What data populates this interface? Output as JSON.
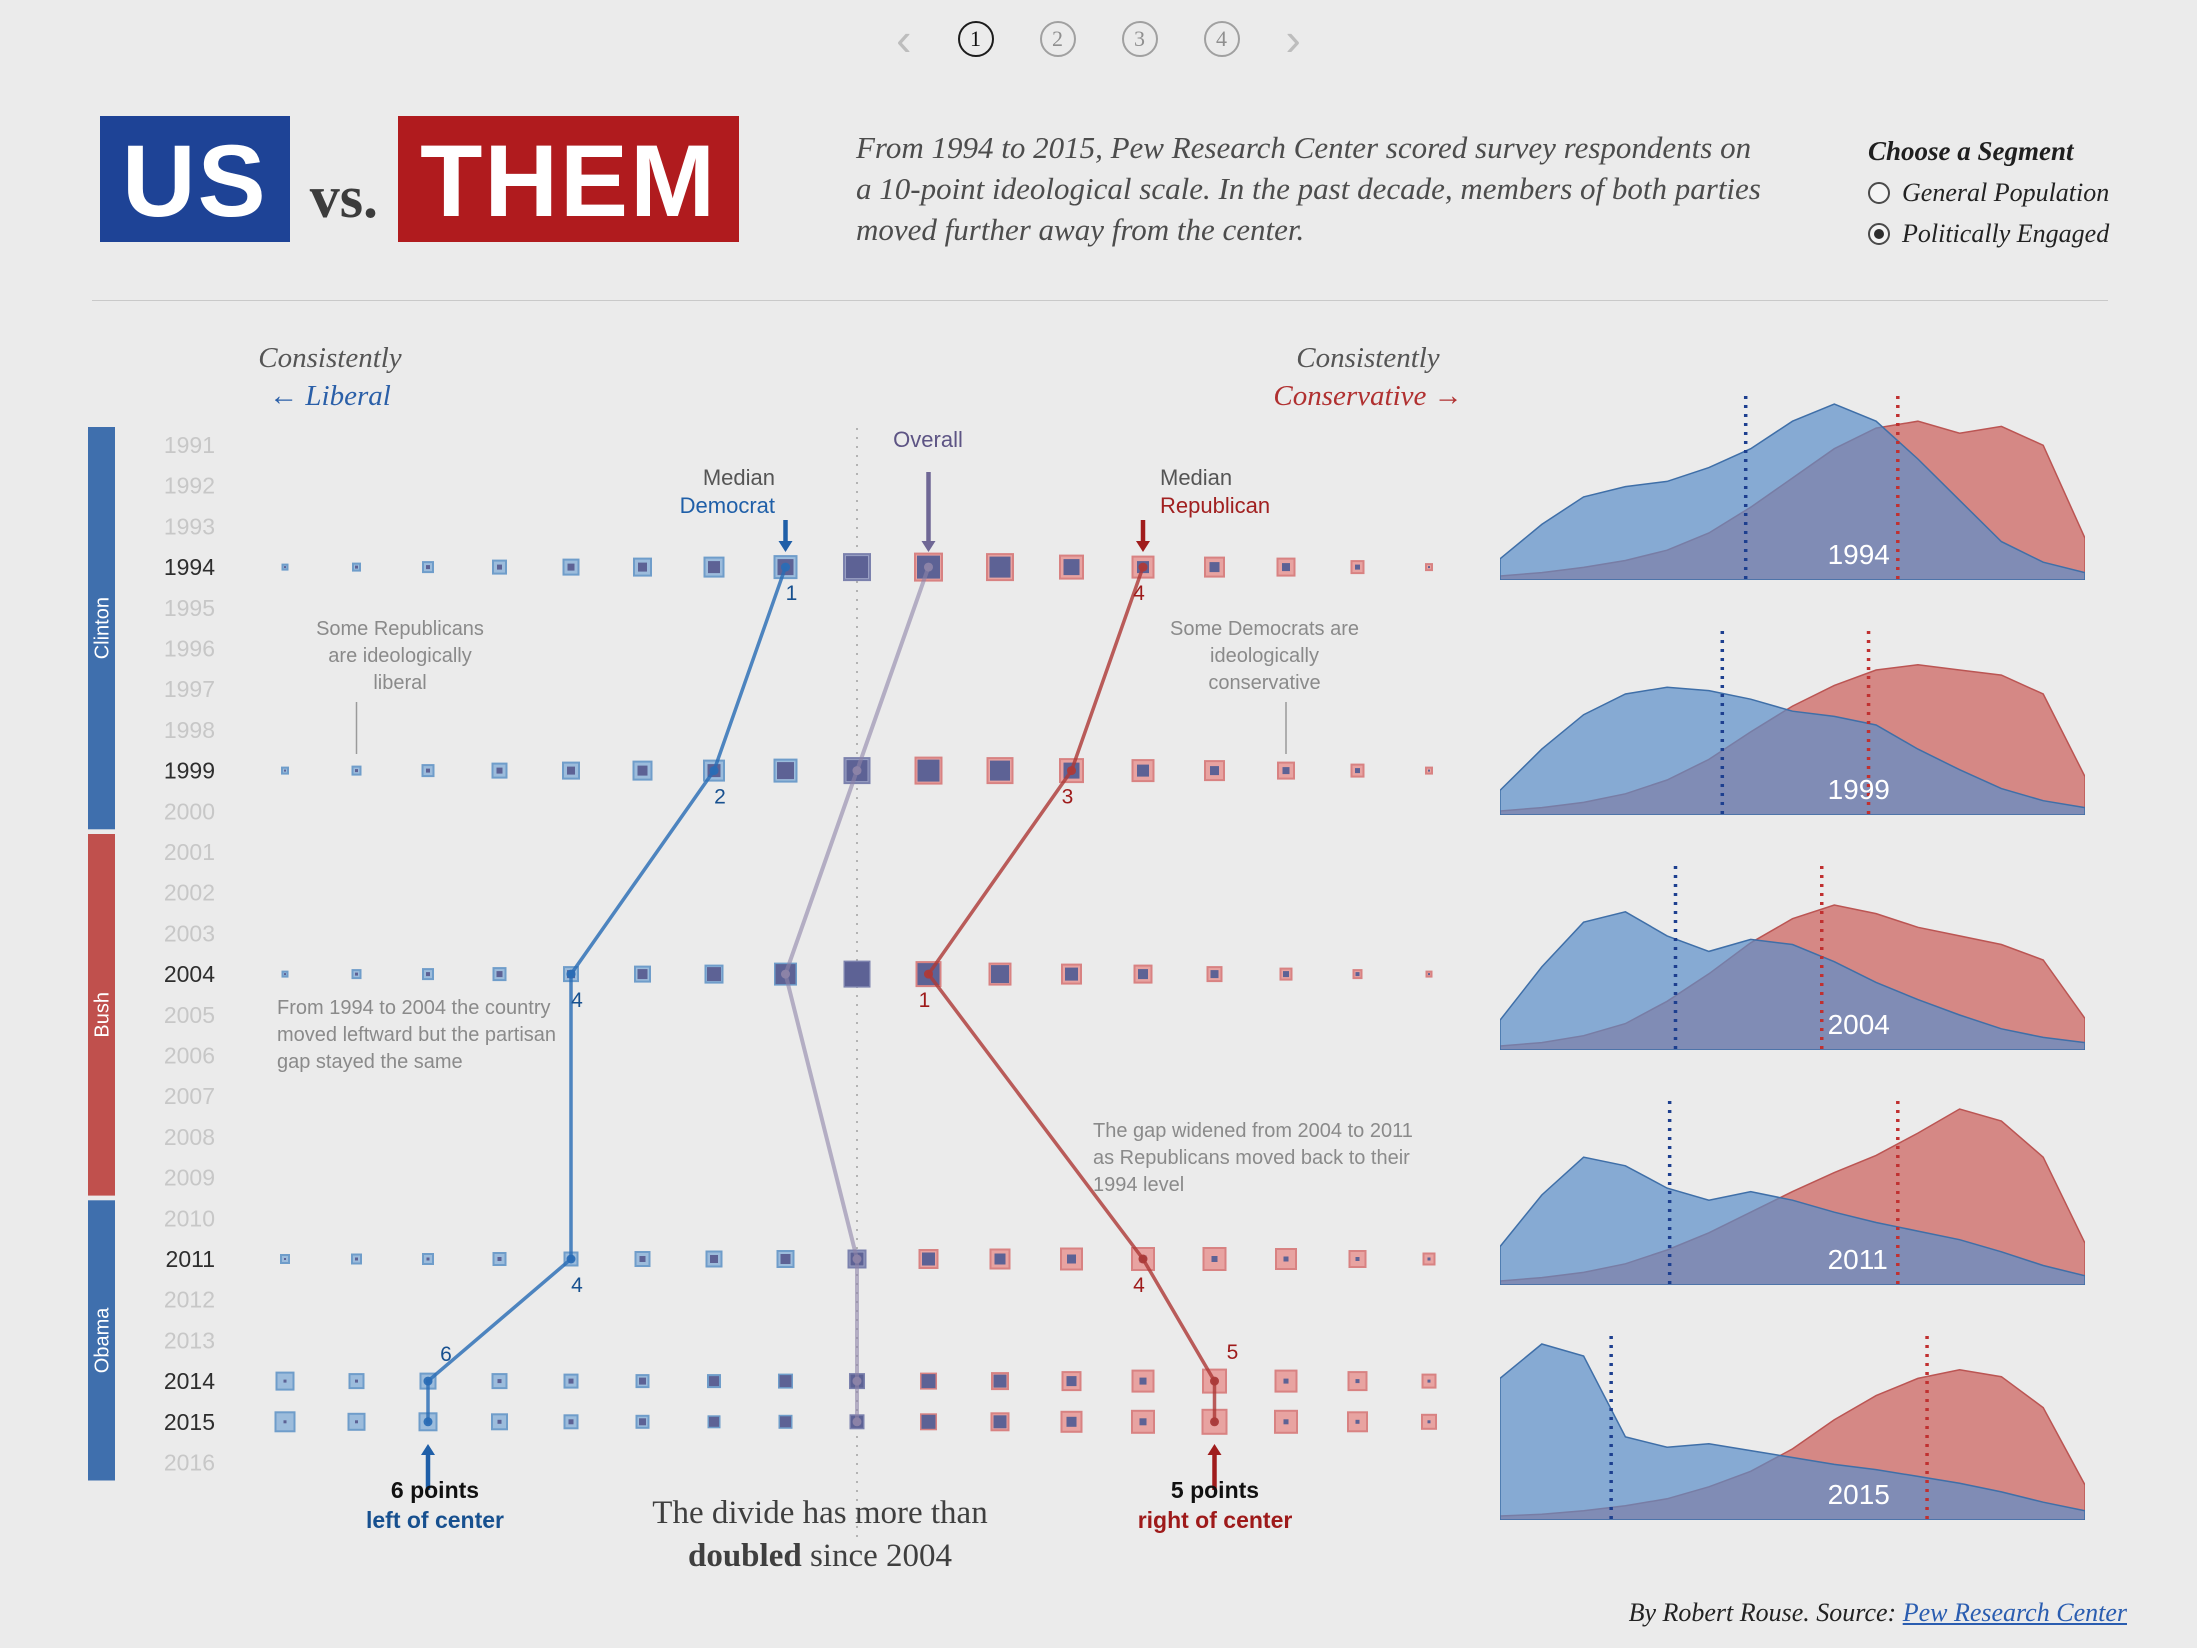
{
  "pager": {
    "prev": "‹",
    "next": "›",
    "pages": [
      "1",
      "2",
      "3",
      "4"
    ],
    "active": "1"
  },
  "header": {
    "logo": {
      "us": "US",
      "vs": "vs.",
      "them": "THEM"
    },
    "intro": "From 1994 to 2015, Pew Research Center scored survey respondents on a 10-point ideological scale. In the past decade, members of both parties moved further away from the center.",
    "segment": {
      "title": "Choose a Segment",
      "options": [
        {
          "label": "General Population",
          "selected": false
        },
        {
          "label": "Politically Engaged",
          "selected": true
        }
      ]
    }
  },
  "main_chart": {
    "labels": {
      "left_line1": "Consistently",
      "left_line2": "← Liberal",
      "right_line1": "Consistently",
      "right_line2": "Conservative →",
      "median_dem_1": "Median",
      "median_dem_2": "Democrat",
      "overall": "Overall",
      "median_rep_1": "Median",
      "median_rep_2": "Republican"
    },
    "annotations": {
      "some_republicans": "Some Republicans are ideologically liberal",
      "some_democrats": "Some Democrats are ideologically conservative",
      "leftward": "From 1994 to 2004 the country moved leftward but the partisan gap stayed the same",
      "gap_widened": "The gap widened from 2004 to 2011 as Republicans moved back to their 1994 level"
    },
    "callouts": {
      "dem_points": "6 points",
      "dem_rest": "left of center",
      "rep_points": "5 points",
      "rep_rest": "right of center"
    },
    "divide": {
      "line1": "The divide has more than",
      "bold": "doubled",
      "rest": " since 2004"
    }
  },
  "colors": {
    "dem_fill": "#9cbcdc",
    "dem_stroke": "#6f9dca",
    "rep_fill": "#e8a3a1",
    "rep_stroke": "#d88282",
    "overlap": "#5d6295",
    "center_fill": "#9aa0c4",
    "center_stroke": "#7b81ad",
    "dem_line": "#2a6db5",
    "rep_line": "#ad3a38",
    "overall_line": "#8d84a8",
    "dem_dark": "#17508f",
    "rep_dark": "#9e1a1a",
    "overall_dark": "#6f6795",
    "dem_arrow": "#1f5fa8",
    "rep_arrow": "#a01c1c",
    "panel_blue": "#5b8ec9",
    "panel_blue_stroke": "#3f6fa8",
    "panel_red": "#cf6f6c",
    "panel_red_stroke": "#bb5553",
    "panel_blue_median": "#1d3f8f",
    "panel_red_median": "#c03030",
    "president_blue": "#3f6fad",
    "president_red": "#c0504d"
  },
  "chart_data": [
    {
      "type": "scatter",
      "title": "Ideological distribution of Democrats and Republicans by year (square size = share of respondents, purple = overlap)",
      "year_axis_start": 1991,
      "year_axis_end": 2016,
      "positions": 17,
      "center_index": 8,
      "years": [
        1994,
        1999,
        2004,
        2011,
        2014,
        2015
      ],
      "presidents": [
        {
          "name": "Clinton",
          "start": 1991,
          "end": 2000,
          "party": "blue"
        },
        {
          "name": "Bush",
          "start": 2001,
          "end": 2009,
          "party": "red"
        },
        {
          "name": "Obama",
          "start": 2010,
          "end": 2016,
          "party": "blue"
        }
      ],
      "rows": [
        {
          "year": 1994,
          "outer": [
            5,
            7,
            10,
            13,
            15,
            17,
            19,
            22,
            26,
            27,
            26,
            23,
            21,
            19,
            17,
            12,
            6
          ],
          "inner": [
            2,
            3,
            4,
            5,
            7,
            9,
            12,
            16,
            22,
            23,
            21,
            16,
            12,
            10,
            8,
            5,
            2
          ]
        },
        {
          "year": 1999,
          "outer": [
            6,
            8,
            11,
            14,
            16,
            18,
            20,
            22,
            25,
            26,
            25,
            23,
            21,
            19,
            16,
            12,
            6
          ],
          "inner": [
            2,
            3,
            4,
            6,
            8,
            10,
            13,
            17,
            21,
            22,
            20,
            16,
            12,
            9,
            7,
            5,
            2
          ]
        },
        {
          "year": 2004,
          "outer": [
            5,
            8,
            10,
            12,
            14,
            15,
            17,
            21,
            25,
            24,
            21,
            19,
            17,
            14,
            11,
            8,
            5
          ],
          "inner": [
            2,
            3,
            4,
            6,
            8,
            10,
            14,
            20,
            24,
            22,
            18,
            13,
            10,
            8,
            6,
            4,
            2
          ]
        },
        {
          "year": 2011,
          "outer": [
            8,
            9,
            10,
            12,
            13,
            14,
            15,
            16,
            17,
            18,
            19,
            21,
            22,
            22,
            20,
            16,
            11
          ],
          "inner": [
            2,
            3,
            3,
            4,
            5,
            6,
            8,
            10,
            13,
            13,
            11,
            9,
            7,
            6,
            5,
            4,
            3
          ]
        },
        {
          "year": 2014,
          "outer": [
            17,
            14,
            15,
            14,
            13,
            12,
            12,
            13,
            14,
            15,
            16,
            18,
            21,
            23,
            21,
            18,
            13
          ],
          "inner": [
            3,
            3,
            4,
            4,
            5,
            7,
            10,
            12,
            13,
            14,
            13,
            10,
            7,
            6,
            5,
            4,
            3
          ]
        },
        {
          "year": 2015,
          "outer": [
            19,
            16,
            17,
            15,
            13,
            12,
            11,
            12,
            13,
            15,
            17,
            20,
            22,
            24,
            22,
            19,
            14
          ],
          "inner": [
            3,
            3,
            4,
            4,
            5,
            7,
            10,
            11,
            12,
            14,
            13,
            10,
            7,
            6,
            5,
            4,
            3
          ]
        }
      ],
      "medians_offset_from_center": {
        "democrat": [
          -1,
          -2,
          -4,
          -4,
          -6,
          -6
        ],
        "overall": [
          1,
          0,
          -1,
          0,
          0,
          0
        ],
        "republican": [
          4,
          3,
          1,
          4,
          5,
          5
        ]
      },
      "median_point_labels": {
        "democrat": [
          "1",
          "2",
          "4",
          "4",
          "6",
          ""
        ],
        "republican": [
          "4",
          "3",
          "1",
          "4",
          "5",
          ""
        ]
      }
    },
    {
      "type": "area",
      "year": "1994",
      "democrat": [
        0.1,
        0.3,
        0.46,
        0.52,
        0.55,
        0.63,
        0.74,
        0.9,
        1.0,
        0.9,
        0.68,
        0.44,
        0.2,
        0.08,
        0.02
      ],
      "republican": [
        0.0,
        0.02,
        0.05,
        0.09,
        0.15,
        0.25,
        0.4,
        0.57,
        0.74,
        0.86,
        0.9,
        0.83,
        0.87,
        0.76,
        0.22
      ],
      "median_democrat": 0.42,
      "median_republican": 0.68
    },
    {
      "type": "area",
      "year": "1999",
      "democrat": [
        0.12,
        0.36,
        0.56,
        0.68,
        0.72,
        0.7,
        0.65,
        0.58,
        0.55,
        0.5,
        0.36,
        0.24,
        0.13,
        0.06,
        0.02
      ],
      "republican": [
        0.0,
        0.02,
        0.05,
        0.1,
        0.18,
        0.3,
        0.46,
        0.61,
        0.73,
        0.82,
        0.85,
        0.82,
        0.79,
        0.68,
        0.2
      ],
      "median_democrat": 0.38,
      "median_republican": 0.63
    },
    {
      "type": "area",
      "year": "2004",
      "democrat": [
        0.15,
        0.46,
        0.72,
        0.78,
        0.64,
        0.55,
        0.62,
        0.59,
        0.49,
        0.37,
        0.27,
        0.18,
        0.1,
        0.05,
        0.02
      ],
      "republican": [
        0.0,
        0.02,
        0.06,
        0.13,
        0.26,
        0.42,
        0.6,
        0.74,
        0.82,
        0.77,
        0.69,
        0.64,
        0.59,
        0.5,
        0.16
      ],
      "median_democrat": 0.3,
      "median_republican": 0.55
    },
    {
      "type": "area",
      "year": "2011",
      "democrat": [
        0.2,
        0.5,
        0.72,
        0.67,
        0.54,
        0.47,
        0.52,
        0.47,
        0.4,
        0.34,
        0.29,
        0.24,
        0.17,
        0.09,
        0.03
      ],
      "republican": [
        0.0,
        0.02,
        0.05,
        0.1,
        0.18,
        0.28,
        0.4,
        0.52,
        0.63,
        0.73,
        0.86,
        1.0,
        0.93,
        0.72,
        0.22
      ],
      "median_democrat": 0.29,
      "median_republican": 0.68
    },
    {
      "type": "area",
      "year": "2015",
      "democrat": [
        0.8,
        1.0,
        0.93,
        0.46,
        0.4,
        0.42,
        0.38,
        0.34,
        0.3,
        0.27,
        0.23,
        0.19,
        0.14,
        0.08,
        0.03
      ],
      "republican": [
        0.0,
        0.01,
        0.03,
        0.06,
        0.1,
        0.17,
        0.26,
        0.39,
        0.56,
        0.7,
        0.8,
        0.85,
        0.81,
        0.63,
        0.18
      ],
      "median_democrat": 0.19,
      "median_republican": 0.73
    }
  ],
  "footer": {
    "byline": "By Robert Rouse. Source: ",
    "link": "Pew Research Center"
  }
}
